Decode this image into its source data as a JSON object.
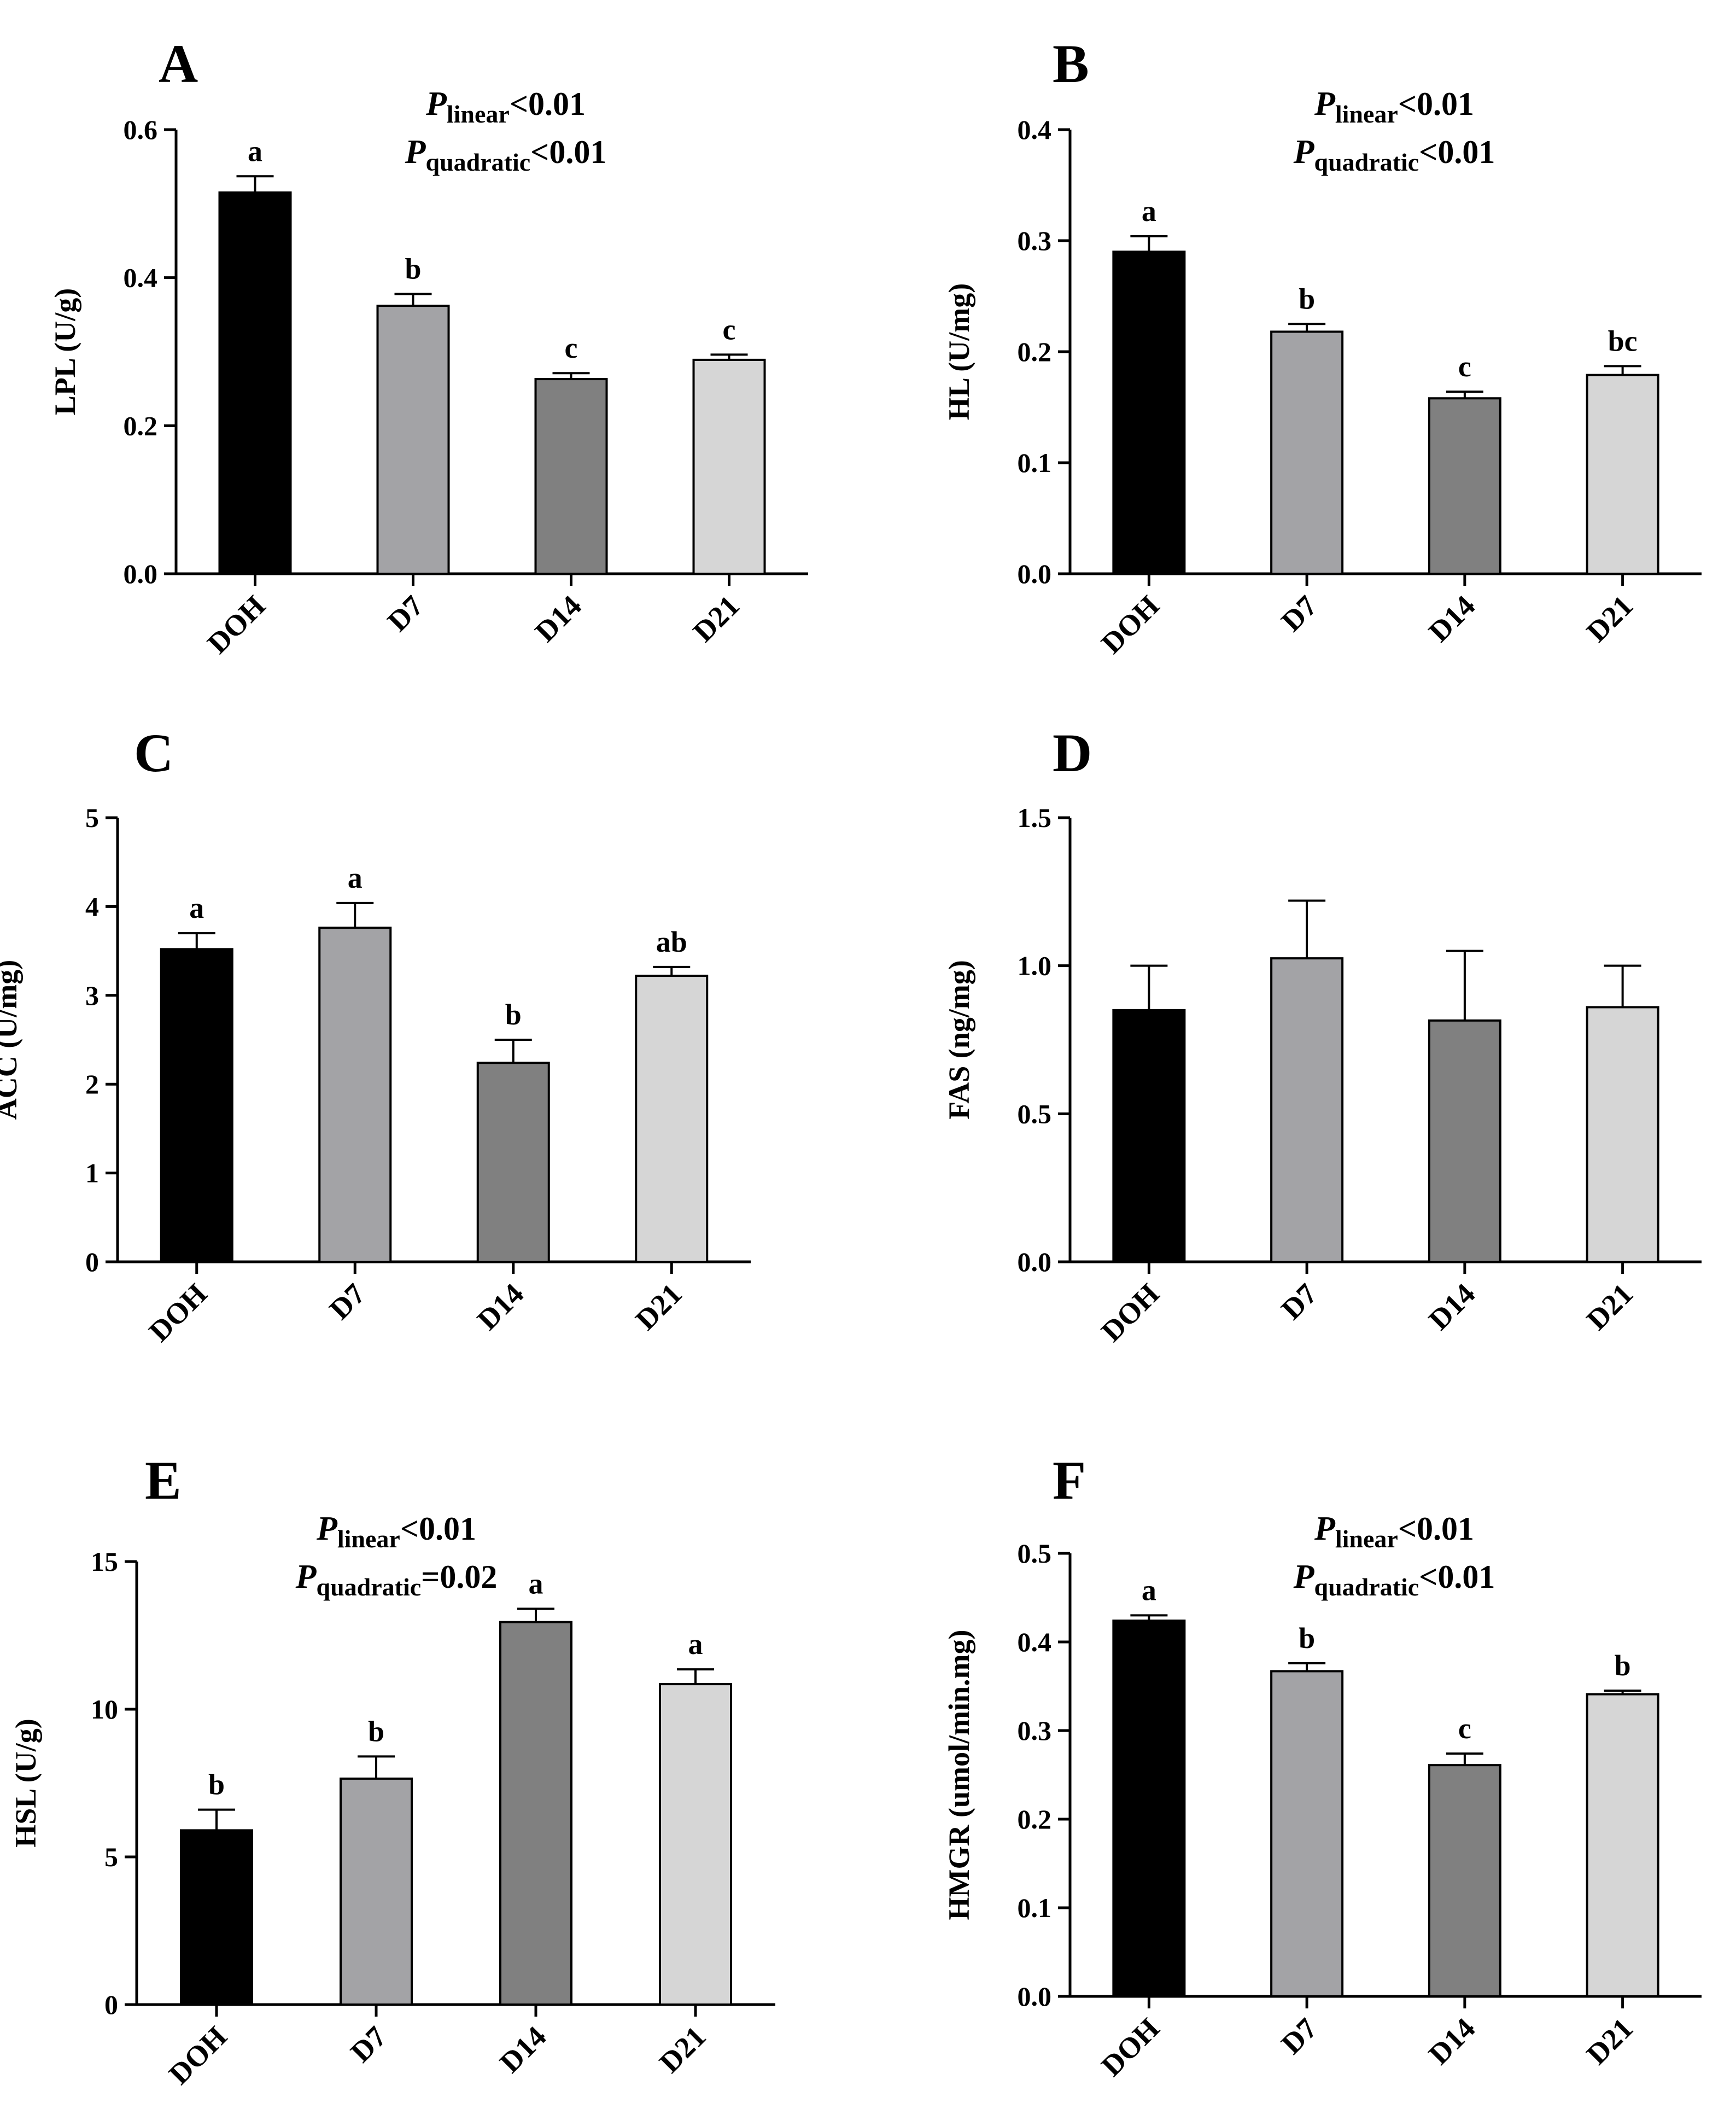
{
  "colors": {
    "DOH": "#000000",
    "D7": "#a3a3a6",
    "D14": "#808080",
    "D21": "#d6d6d6",
    "axis": "#000000"
  },
  "chart_data": [
    {
      "id": "A",
      "type": "bar",
      "panel_label": "A",
      "ylabel": "LPL (U/g)",
      "ylim": [
        0,
        0.6
      ],
      "yticks": [
        "0.0",
        "0.2",
        "0.4",
        "0.6"
      ],
      "categories": [
        "DOH",
        "D7",
        "D14",
        "D21"
      ],
      "values": [
        0.515,
        0.362,
        0.263,
        0.289
      ],
      "errors": [
        0.022,
        0.016,
        0.008,
        0.007
      ],
      "sig_letters": [
        "a",
        "b",
        "c",
        "c"
      ],
      "stats": [
        {
          "var": "P",
          "sub": "linear",
          "rest": "<0.01"
        },
        {
          "var": "P",
          "sub": "quadratic",
          "rest": "<0.01"
        }
      ]
    },
    {
      "id": "B",
      "type": "bar",
      "panel_label": "B",
      "ylabel": "HL (U/mg)",
      "ylim": [
        0,
        0.4
      ],
      "yticks": [
        "0.0",
        "0.1",
        "0.2",
        "0.3",
        "0.4"
      ],
      "categories": [
        "DOH",
        "D7",
        "D14",
        "D21"
      ],
      "values": [
        0.29,
        0.218,
        0.158,
        0.179
      ],
      "errors": [
        0.014,
        0.007,
        0.006,
        0.008
      ],
      "sig_letters": [
        "a",
        "b",
        "c",
        "bc"
      ],
      "stats": [
        {
          "var": "P",
          "sub": "linear",
          "rest": "<0.01"
        },
        {
          "var": "P",
          "sub": "quadratic",
          "rest": "<0.01"
        }
      ]
    },
    {
      "id": "C",
      "type": "bar",
      "panel_label": "C",
      "ylabel": "ACC (U/mg)",
      "ylim": [
        0,
        5
      ],
      "yticks": [
        "0",
        "1",
        "2",
        "3",
        "4",
        "5"
      ],
      "categories": [
        "DOH",
        "D7",
        "D14",
        "D21"
      ],
      "values": [
        3.52,
        3.76,
        2.24,
        3.22
      ],
      "errors": [
        0.18,
        0.28,
        0.26,
        0.1
      ],
      "sig_letters": [
        "a",
        "a",
        "b",
        "ab"
      ],
      "stats": []
    },
    {
      "id": "D",
      "type": "bar",
      "panel_label": "D",
      "ylabel": "FAS (ng/mg)",
      "ylim": [
        0,
        1.5
      ],
      "yticks": [
        "0.0",
        "0.5",
        "1.0",
        "1.5"
      ],
      "categories": [
        "DOH",
        "D7",
        "D14",
        "D21"
      ],
      "values": [
        0.85,
        1.025,
        0.815,
        0.86
      ],
      "errors": [
        0.15,
        0.195,
        0.235,
        0.14
      ],
      "sig_letters": [
        "",
        "",
        "",
        ""
      ],
      "stats": []
    },
    {
      "id": "E",
      "type": "bar",
      "panel_label": "E",
      "ylabel": "HSL (U/g)",
      "ylim": [
        0,
        15
      ],
      "yticks": [
        "0",
        "5",
        "10",
        "15"
      ],
      "categories": [
        "DOH",
        "D7",
        "D14",
        "D21"
      ],
      "values": [
        5.9,
        7.65,
        12.95,
        10.85
      ],
      "errors": [
        0.7,
        0.75,
        0.45,
        0.5
      ],
      "sig_letters": [
        "b",
        "b",
        "a",
        "a"
      ],
      "stats": [
        {
          "var": "P",
          "sub": "linear",
          "rest": "<0.01"
        },
        {
          "var": "P",
          "sub": "quadratic",
          "rest": "=0.02"
        }
      ]
    },
    {
      "id": "F",
      "type": "bar",
      "panel_label": "F",
      "ylabel": "HMGR (umol/min.mg)",
      "ylim": [
        0,
        0.5
      ],
      "yticks": [
        "0.0",
        "0.1",
        "0.2",
        "0.3",
        "0.4",
        "0.5"
      ],
      "categories": [
        "DOH",
        "D7",
        "D14",
        "D21"
      ],
      "values": [
        0.424,
        0.367,
        0.261,
        0.341
      ],
      "errors": [
        0.006,
        0.009,
        0.013,
        0.004
      ],
      "sig_letters": [
        "a",
        "b",
        "c",
        "b"
      ],
      "stats": [
        {
          "var": "P",
          "sub": "linear",
          "rest": "<0.01"
        },
        {
          "var": "P",
          "sub": "quadratic",
          "rest": "<0.01"
        }
      ]
    }
  ]
}
